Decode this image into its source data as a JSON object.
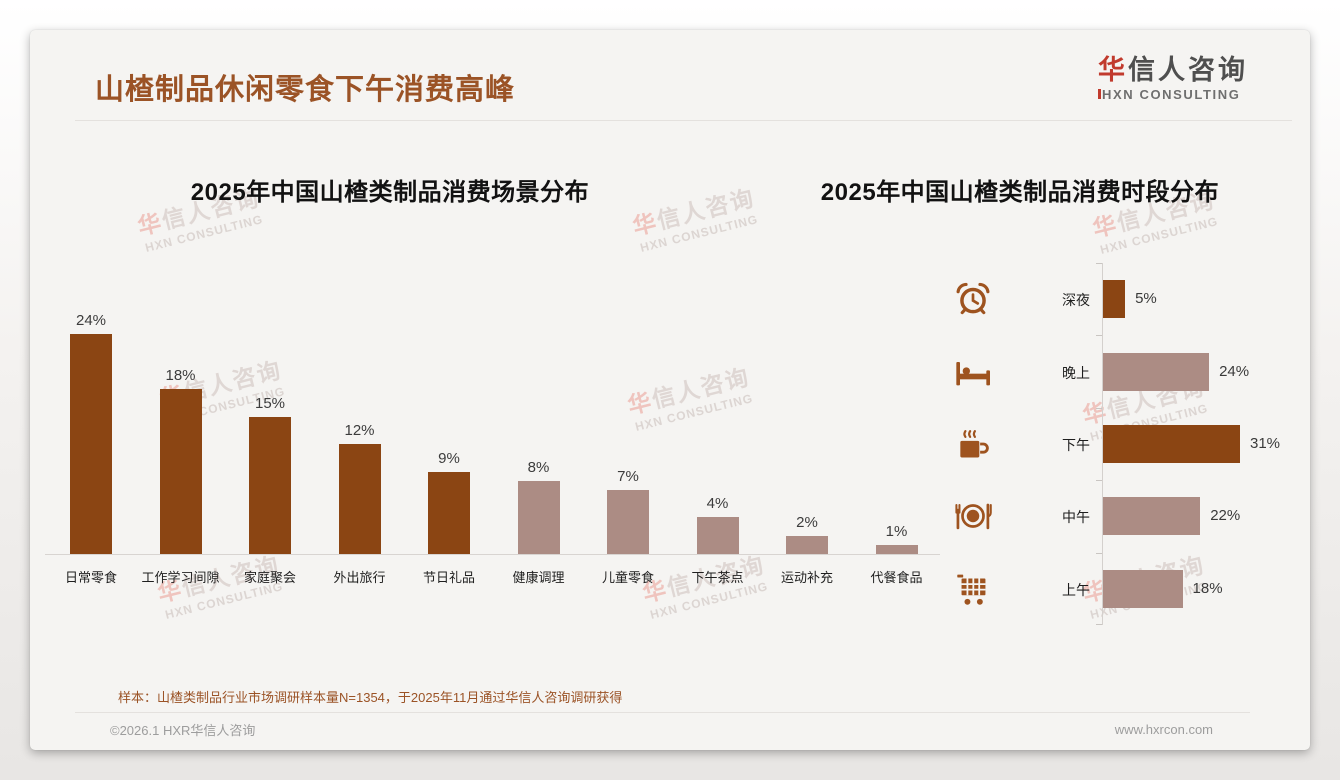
{
  "page": {
    "title": "山楂制品休闲零食下午消费高峰",
    "logo": {
      "cn_accent": "华",
      "cn_rest": "信人咨询",
      "en": "HXN CONSULTING"
    },
    "watermark": {
      "line1": "华信人咨询",
      "line2": "HXN CONSULTING"
    },
    "footnote": "样本：山楂类制品行业市场调研样本量N=1354，于2025年11月通过华信人咨询调研获得",
    "copyright": "©2026.1 HXR华信人咨询",
    "website": "www.hxrcon.com"
  },
  "colors": {
    "dark_brown": "#8B4513",
    "light_mauve": "#AC8C84",
    "title_brown": "#9B5326",
    "logo_red": "#C13A2D",
    "icon_brown": "#9E531F"
  },
  "chart_data": [
    {
      "type": "bar",
      "orientation": "vertical",
      "title": "2025年中国山楂类制品消费场景分布",
      "categories": [
        "日常零食",
        "工作学习间隙",
        "家庭聚会",
        "外出旅行",
        "节日礼品",
        "健康调理",
        "儿童零食",
        "下午茶点",
        "运动补充",
        "代餐食品"
      ],
      "values": [
        24,
        18,
        15,
        12,
        9,
        8,
        7,
        4,
        2,
        1
      ],
      "value_labels": [
        "24%",
        "18%",
        "15%",
        "12%",
        "9%",
        "8%",
        "7%",
        "4%",
        "2%",
        "1%"
      ],
      "bar_colors": [
        "#8B4513",
        "#8B4513",
        "#8B4513",
        "#8B4513",
        "#8B4513",
        "#AC8C84",
        "#AC8C84",
        "#AC8C84",
        "#AC8C84",
        "#AC8C84"
      ],
      "unit": "percent",
      "ylim": [
        0,
        25
      ],
      "grid": false,
      "legend": false
    },
    {
      "type": "bar",
      "orientation": "horizontal",
      "title": "2025年中国山楂类制品消费时段分布",
      "categories": [
        "深夜",
        "晚上",
        "下午",
        "中午",
        "上午"
      ],
      "values": [
        5,
        24,
        31,
        22,
        18
      ],
      "value_labels": [
        "5%",
        "24%",
        "31%",
        "22%",
        "18%"
      ],
      "bar_colors": [
        "#8B4513",
        "#AC8C84",
        "#8B4513",
        "#AC8C84",
        "#AC8C84"
      ],
      "icons": [
        "alarm-clock-icon",
        "bed-icon",
        "coffee-cup-icon",
        "dining-plate-icon",
        "shopping-cart-icon"
      ],
      "unit": "percent",
      "xlim": [
        0,
        35
      ],
      "grid": false,
      "legend": false
    }
  ]
}
